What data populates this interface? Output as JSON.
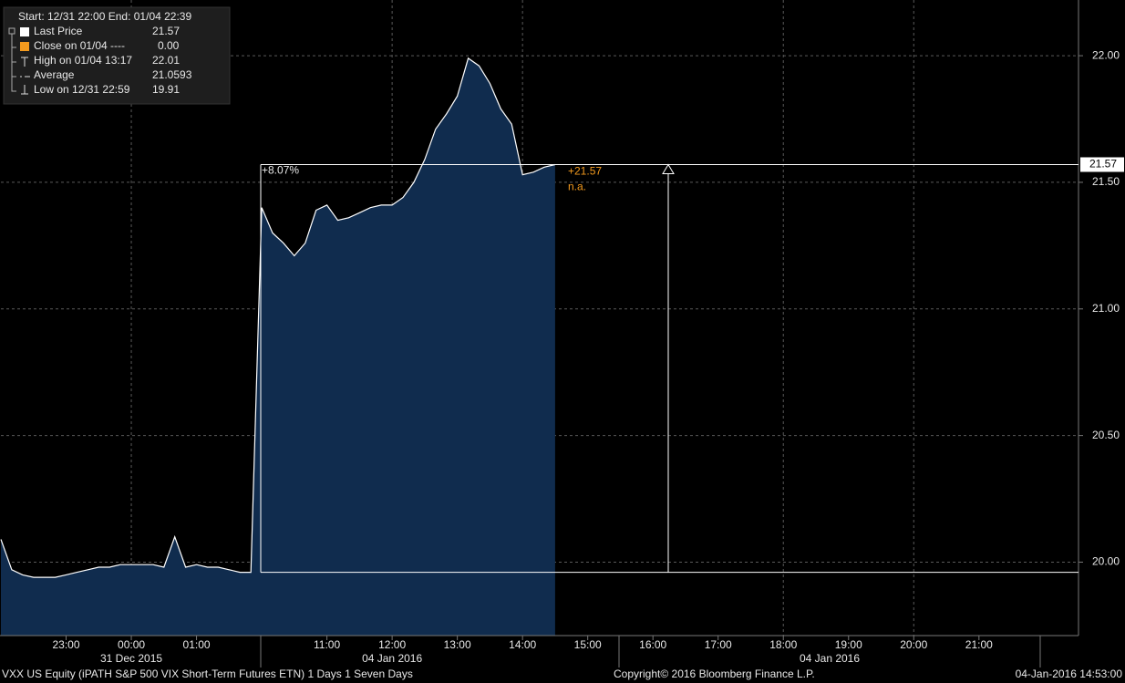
{
  "chart_data": {
    "type": "area",
    "categories": [
      null,
      null,
      null,
      null,
      null,
      null,
      "23:00",
      null,
      null,
      null,
      null,
      null,
      "00:00",
      null,
      null,
      null,
      null,
      null,
      "01:00",
      null,
      null,
      null,
      null,
      null,
      null,
      null,
      null,
      null,
      null,
      null,
      "11:00",
      null,
      null,
      null,
      null,
      null,
      "12:00",
      null,
      null,
      null,
      null,
      null,
      "13:00",
      null,
      null,
      null,
      null,
      null,
      "14:00",
      null,
      null,
      null,
      null,
      null,
      "15:00",
      null,
      null,
      null,
      null,
      null,
      "16:00",
      null,
      null,
      null,
      null,
      null,
      "17:00",
      null,
      null,
      null,
      null,
      null,
      "18:00",
      null,
      null,
      null,
      null,
      null,
      "19:00",
      null,
      null,
      null,
      null,
      null,
      "20:00",
      null,
      null,
      null,
      null,
      null,
      "21:00",
      null,
      null,
      null,
      null,
      null,
      null,
      null,
      null
    ],
    "date_labels": [
      "31 Dec 2015",
      "04 Jan 2016",
      "04 Jan 2016"
    ],
    "series": [
      {
        "name": "Last Price",
        "color": "#ffffff",
        "fill": "#102c4e",
        "values": [
          20.09,
          19.97,
          19.95,
          19.94,
          19.94,
          19.94,
          19.95,
          19.96,
          19.97,
          19.98,
          19.98,
          19.99,
          19.99,
          19.99,
          19.99,
          19.98,
          20.1,
          19.98,
          19.99,
          19.98,
          19.98,
          19.97,
          19.96,
          19.96,
          21.4,
          21.3,
          21.26,
          21.21,
          21.26,
          21.39,
          21.41,
          21.35,
          21.36,
          21.38,
          21.4,
          21.41,
          21.41,
          21.44,
          21.5,
          21.59,
          21.71,
          21.77,
          21.84,
          21.99,
          21.96,
          21.89,
          21.79,
          21.73,
          21.53,
          21.54,
          21.56,
          21.57,
          null,
          null,
          null,
          null,
          null,
          null,
          null,
          null,
          null,
          null,
          null,
          null,
          null,
          null,
          null,
          null,
          null,
          null,
          null,
          null,
          null,
          null,
          null,
          null,
          null,
          null,
          null,
          null,
          null,
          null,
          null,
          null,
          null,
          null,
          null,
          null,
          null,
          null,
          null,
          null,
          null,
          null,
          null,
          null,
          null,
          null,
          null
        ]
      }
    ],
    "ylim": [
      19.71,
      22.22
    ],
    "yticks": [
      {
        "value": 20,
        "label": "20.00"
      },
      {
        "value": 20.5,
        "label": "20.50"
      },
      {
        "value": 21,
        "label": "21.00"
      },
      {
        "value": 21.5,
        "label": "21.50"
      },
      {
        "value": 22,
        "label": "22.00"
      }
    ],
    "grid": true,
    "last_price": {
      "value": 21.57,
      "label": "21.57"
    },
    "base_price": 19.96,
    "annotations": {
      "change": "+8.07%",
      "last": "+21.57",
      "na": "n.a."
    },
    "legend_header": "Start: 12/31 22:00 End: 01/04 22:39",
    "legend_stats": [
      {
        "value": "21.57"
      },
      {
        "label": "Close on 01/04 ----",
        "value": "0.00"
      },
      {
        "label": "High on 01/04 13:17",
        "value": "22.01"
      },
      {
        "label": "Average",
        "value": "21.0593"
      },
      {
        "label": "Low on 12/31 22:59",
        "value": "19.91"
      }
    ],
    "footer": {
      "left": "VXX US Equity (iPATH S&P 500 VIX Short-Term Futures ETN) 1 Days 1 Seven Days",
      "center": "Copyright© 2016 Bloomberg Finance L.P.",
      "right": "04-Jan-2016 14:53:00"
    }
  }
}
